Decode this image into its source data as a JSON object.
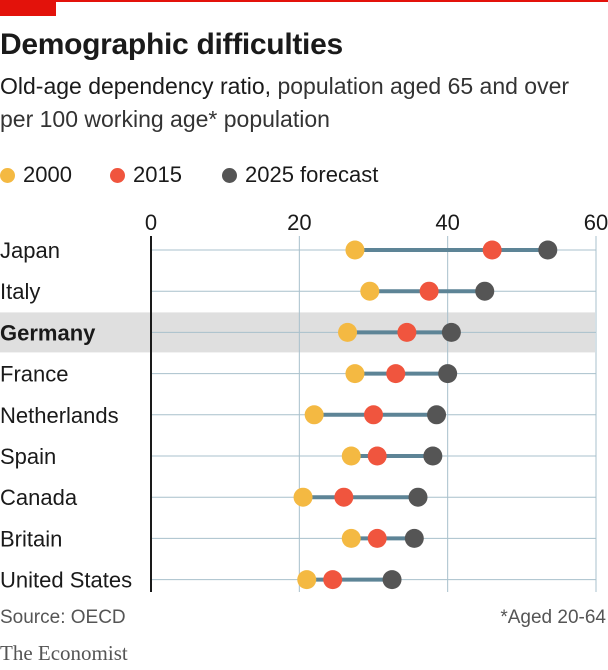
{
  "header": {
    "title": "Demographic difficulties",
    "subtitle_lead": "Old-age dependency ratio,",
    "subtitle_rest": " population aged 65 and over per 100 working age* population"
  },
  "footer": {
    "source": "Source: OECD",
    "footnote": "*Aged 20-64",
    "brand": "The Economist"
  },
  "colors": {
    "s2000": "#f4b942",
    "s2015": "#f0553e",
    "s2025": "#555555",
    "connector": "#5d8496",
    "grid": "#a8c0cc",
    "highlight": "#dfdfdf",
    "accent": "#e3120b"
  },
  "chart_data": {
    "type": "scatter",
    "title": "Demographic difficulties",
    "xlim": [
      0,
      60
    ],
    "xticks": [
      0,
      20,
      40,
      60
    ],
    "grid": true,
    "legend_position": "top-left",
    "highlighted_category": "Germany",
    "categories": [
      "Japan",
      "Italy",
      "Germany",
      "France",
      "Netherlands",
      "Spain",
      "Canada",
      "Britain",
      "United States"
    ],
    "series": [
      {
        "name": "2000",
        "color": "#f4b942",
        "values": [
          27.5,
          29.5,
          26.5,
          27.5,
          22,
          27,
          20.5,
          27,
          21
        ]
      },
      {
        "name": "2015",
        "color": "#f0553e",
        "values": [
          46,
          37.5,
          34.5,
          33,
          30,
          30.5,
          26,
          30.5,
          24.5
        ]
      },
      {
        "name": "2025 forecast",
        "color": "#555555",
        "values": [
          53.5,
          45,
          40.5,
          40,
          38.5,
          38,
          36,
          35.5,
          32.5
        ]
      }
    ]
  }
}
